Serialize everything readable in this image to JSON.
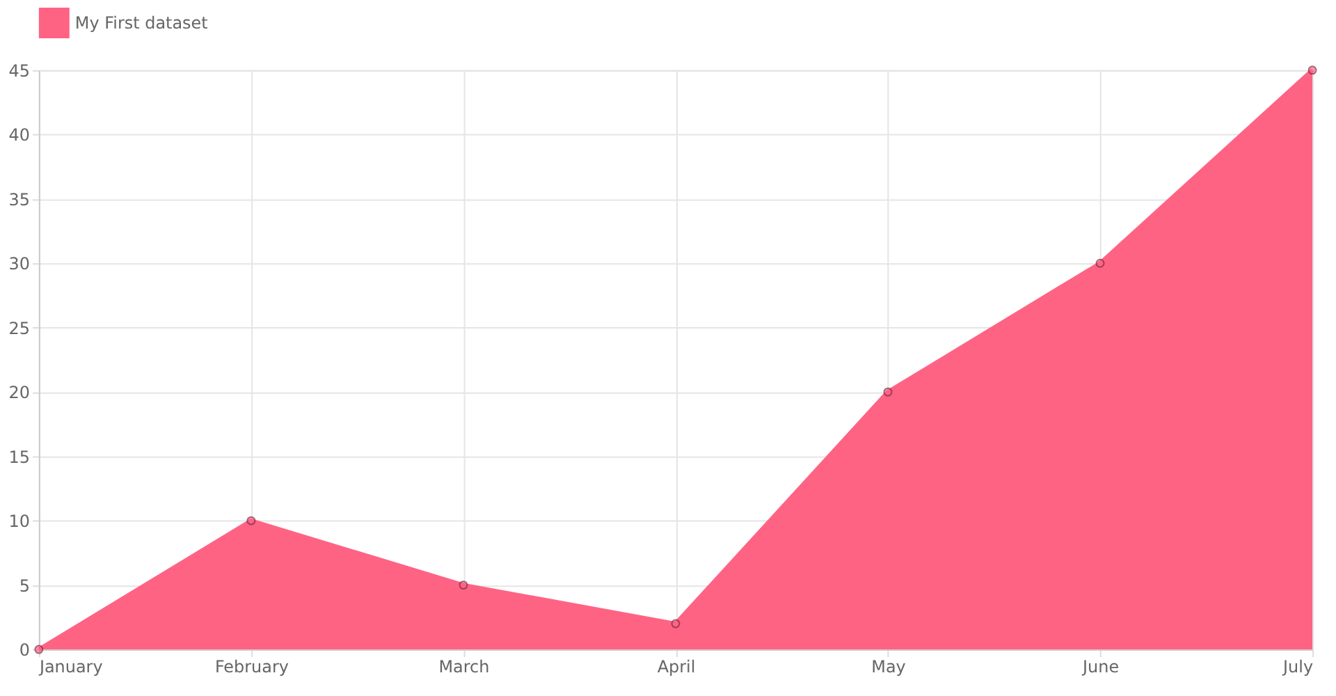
{
  "chart_data": {
    "type": "area",
    "categories": [
      "January",
      "February",
      "March",
      "April",
      "May",
      "June",
      "July"
    ],
    "series": [
      {
        "name": "My First dataset",
        "color": "#ff6384",
        "values": [
          0,
          10,
          5,
          2,
          20,
          30,
          45
        ]
      }
    ],
    "ylim": [
      0,
      45
    ],
    "yticks": [
      0,
      5,
      10,
      15,
      20,
      25,
      30,
      35,
      40,
      45
    ],
    "grid": true,
    "legend": "top",
    "marker": "circle",
    "line_style": "solid"
  }
}
